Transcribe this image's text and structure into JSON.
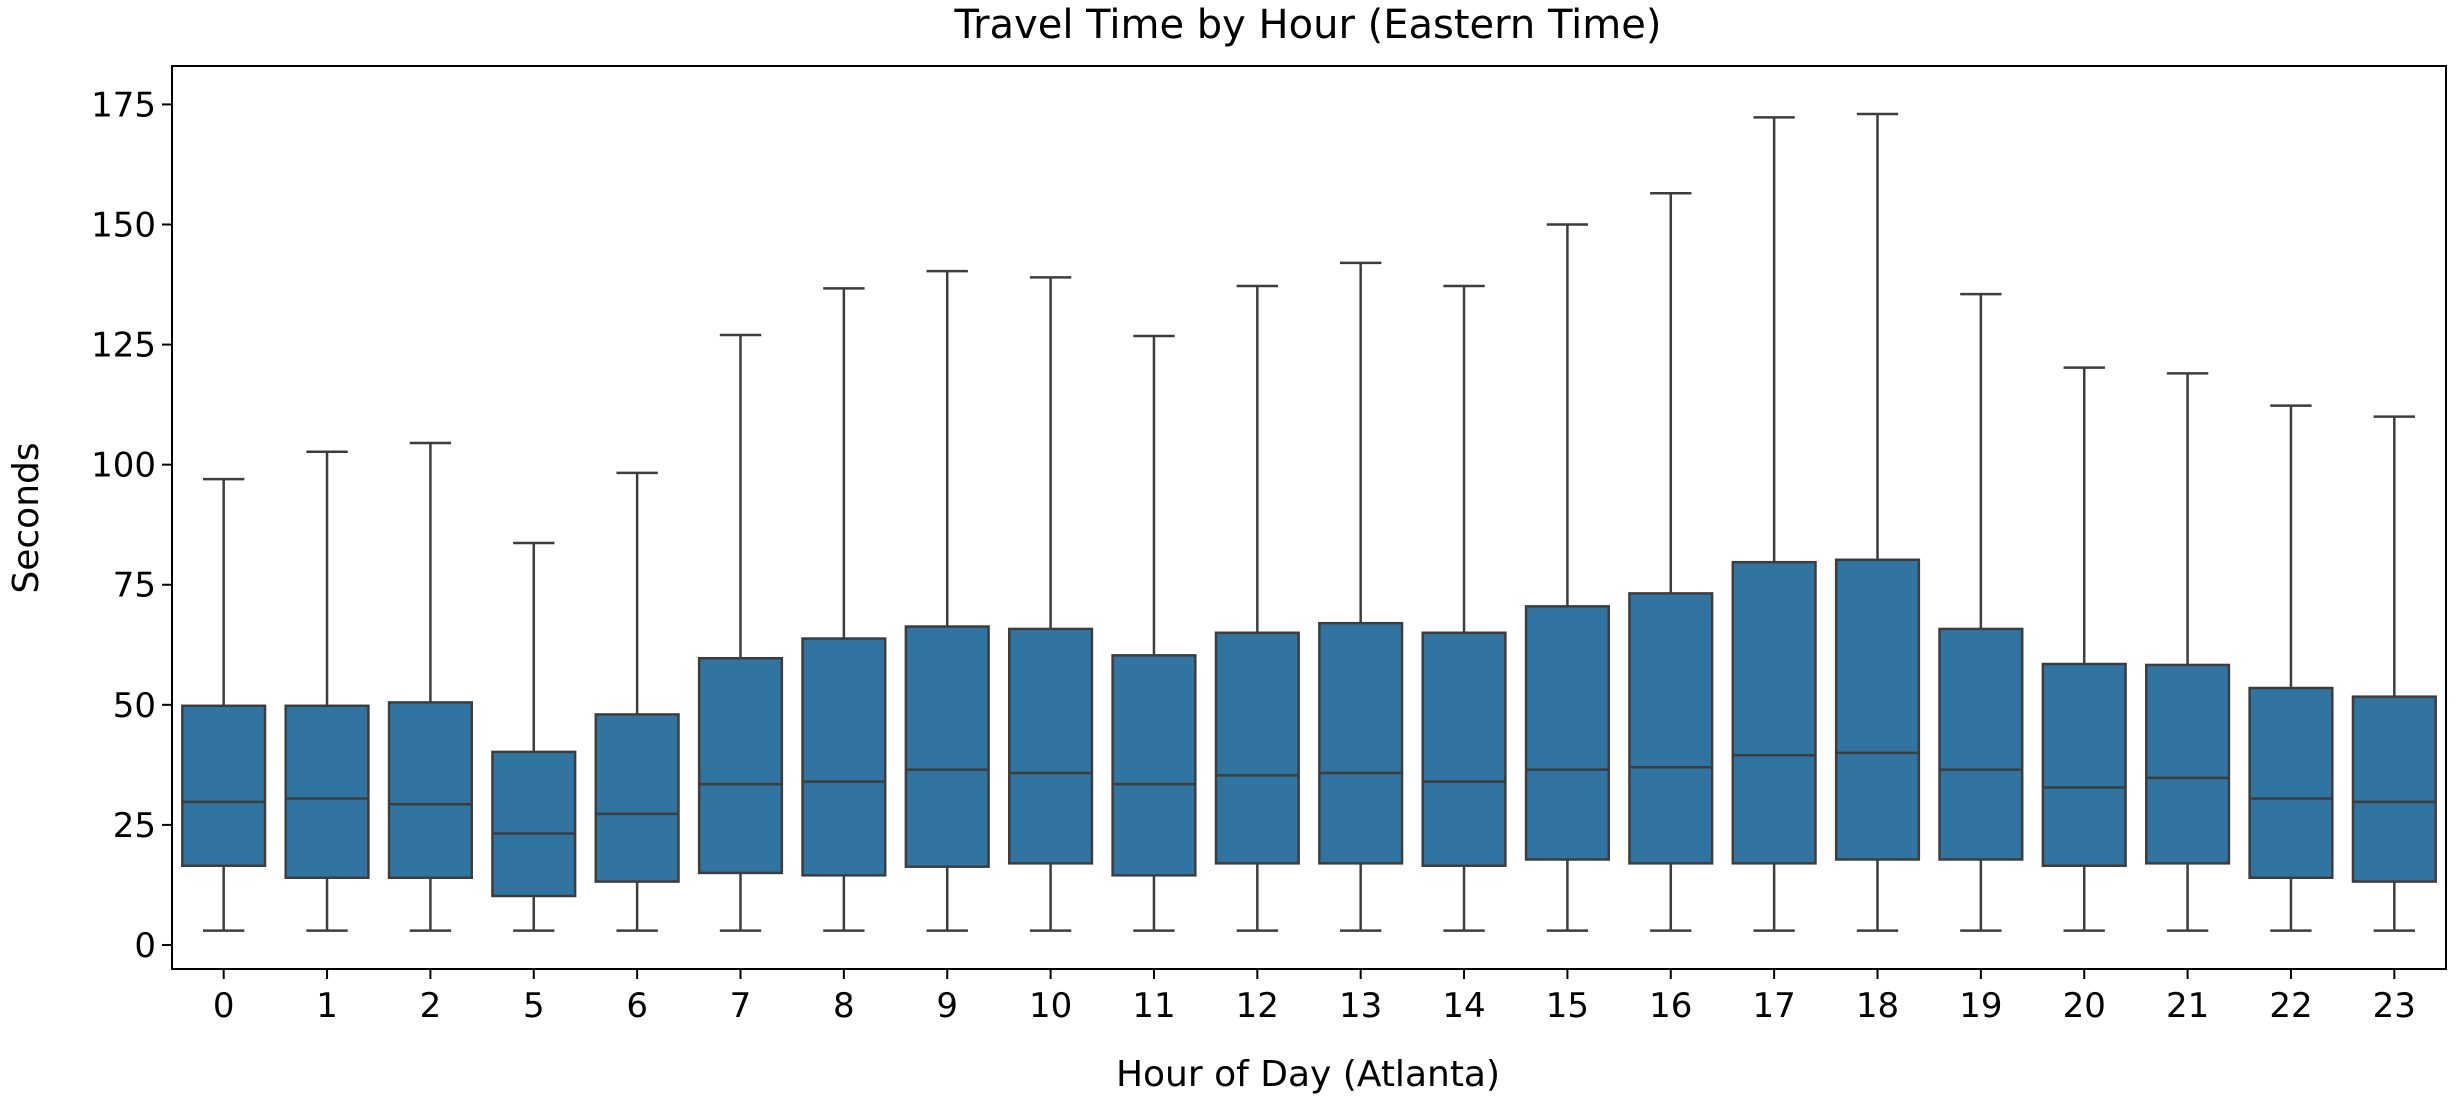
{
  "chart_data": {
    "type": "box",
    "title": "Travel Time by Hour (Eastern Time)",
    "xlabel": "Hour of Day (Atlanta)",
    "ylabel": "Seconds",
    "ylim": [
      -5,
      183
    ],
    "yticks": [
      0,
      25,
      50,
      75,
      100,
      125,
      150,
      175
    ],
    "grid": false,
    "legend": "none",
    "box_color": "#3274a1",
    "line_color": "#3d3d3d",
    "categories": [
      "0",
      "1",
      "2",
      "5",
      "6",
      "7",
      "8",
      "9",
      "10",
      "11",
      "12",
      "13",
      "14",
      "15",
      "16",
      "17",
      "18",
      "19",
      "20",
      "21",
      "22",
      "23"
    ],
    "boxes": [
      {
        "whislo": 3,
        "q1": 16.5,
        "med": 29.8,
        "q3": 49.8,
        "whishi": 97.0
      },
      {
        "whislo": 3,
        "q1": 14.0,
        "med": 30.5,
        "q3": 49.8,
        "whishi": 102.7
      },
      {
        "whislo": 3,
        "q1": 14.0,
        "med": 29.3,
        "q3": 50.5,
        "whishi": 104.5
      },
      {
        "whislo": 3,
        "q1": 10.2,
        "med": 23.2,
        "q3": 40.2,
        "whishi": 83.7
      },
      {
        "whislo": 3,
        "q1": 13.2,
        "med": 27.3,
        "q3": 48.0,
        "whishi": 98.3
      },
      {
        "whislo": 3,
        "q1": 15.0,
        "med": 33.5,
        "q3": 59.7,
        "whishi": 127.0
      },
      {
        "whislo": 3,
        "q1": 14.5,
        "med": 34.0,
        "q3": 63.8,
        "whishi": 136.7
      },
      {
        "whislo": 3,
        "q1": 16.3,
        "med": 36.5,
        "q3": 66.3,
        "whishi": 140.3
      },
      {
        "whislo": 3,
        "q1": 17.0,
        "med": 35.8,
        "q3": 65.8,
        "whishi": 139.0
      },
      {
        "whislo": 3,
        "q1": 14.5,
        "med": 33.5,
        "q3": 60.3,
        "whishi": 126.8
      },
      {
        "whislo": 3,
        "q1": 17.0,
        "med": 35.3,
        "q3": 65.0,
        "whishi": 137.2
      },
      {
        "whislo": 3,
        "q1": 17.0,
        "med": 35.8,
        "q3": 67.0,
        "whishi": 142.0
      },
      {
        "whislo": 3,
        "q1": 16.5,
        "med": 34.0,
        "q3": 65.0,
        "whishi": 137.2
      },
      {
        "whislo": 3,
        "q1": 17.8,
        "med": 36.5,
        "q3": 70.5,
        "whishi": 150.0
      },
      {
        "whislo": 3,
        "q1": 17.0,
        "med": 37.0,
        "q3": 73.2,
        "whishi": 156.5
      },
      {
        "whislo": 3,
        "q1": 17.0,
        "med": 39.5,
        "q3": 79.7,
        "whishi": 172.3
      },
      {
        "whislo": 3,
        "q1": 17.8,
        "med": 40.0,
        "q3": 80.2,
        "whishi": 173.0
      },
      {
        "whislo": 3,
        "q1": 17.8,
        "med": 36.5,
        "q3": 65.8,
        "whishi": 135.5
      },
      {
        "whislo": 3,
        "q1": 16.5,
        "med": 32.8,
        "q3": 58.5,
        "whishi": 120.2
      },
      {
        "whislo": 3,
        "q1": 17.0,
        "med": 34.8,
        "q3": 58.3,
        "whishi": 119.0
      },
      {
        "whislo": 3,
        "q1": 14.0,
        "med": 30.5,
        "q3": 53.5,
        "whishi": 112.3
      },
      {
        "whislo": 3,
        "q1": 13.2,
        "med": 29.8,
        "q3": 51.7,
        "whishi": 110.0
      }
    ]
  }
}
